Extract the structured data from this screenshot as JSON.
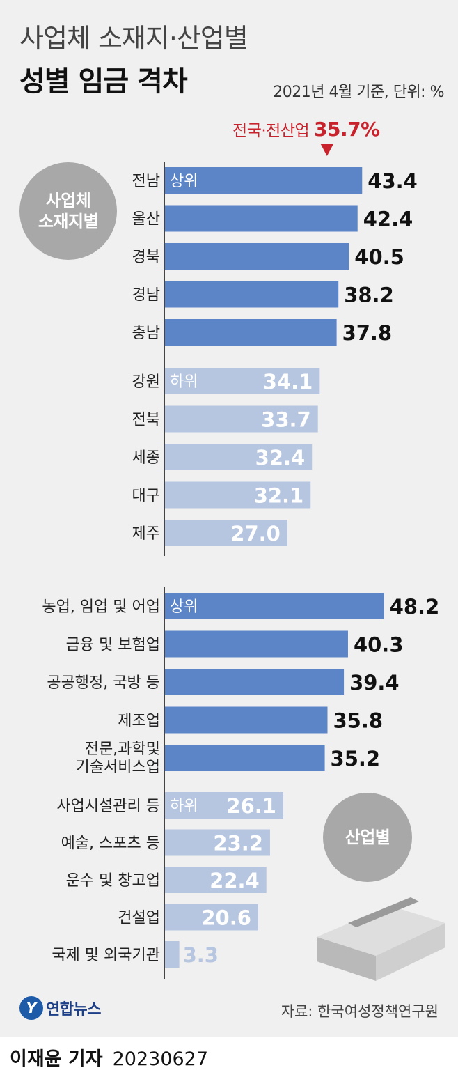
{
  "logo_text": "연합뉴스",
  "source": "자료: 한국여성정책연구원",
  "byline": {
    "reporter": "이재윤 기자",
    "date": "20230627"
  },
  "chart_data": {
    "type": "bar",
    "orientation": "horizontal",
    "title_line1": "사업체 소재지·산업별",
    "title_line2": "성별 임금 격차",
    "subtitle": "2021년 4월 기준, 단위: %",
    "unit": "%",
    "reference": {
      "label": "전국·전산업",
      "value": 35.7,
      "display": "35.7%"
    },
    "colors": {
      "top": "#5b85c6",
      "bottom": "#b7c6e0",
      "reference": "#c8232c",
      "badge": "#a8a8a8"
    },
    "groups": [
      {
        "name": "사업체 소재지별",
        "badge": "사업체\n소재지별",
        "subgroups": [
          {
            "tag": "상위",
            "level": "top",
            "categories": [
              "전남",
              "울산",
              "경북",
              "경남",
              "충남"
            ],
            "values": [
              43.4,
              42.4,
              40.5,
              38.2,
              37.8
            ]
          },
          {
            "tag": "하위",
            "level": "bottom",
            "categories": [
              "강원",
              "전북",
              "세종",
              "대구",
              "제주"
            ],
            "values": [
              34.1,
              33.7,
              32.4,
              32.1,
              27.0
            ]
          }
        ]
      },
      {
        "name": "산업별",
        "badge": "산업별",
        "subgroups": [
          {
            "tag": "상위",
            "level": "top",
            "categories": [
              "농업, 임업 및 어업",
              "금융 및 보험업",
              "공공행정, 국방 등",
              "제조업",
              "전문,과학및\n기술서비스업"
            ],
            "values": [
              48.2,
              40.3,
              39.4,
              35.8,
              35.2
            ]
          },
          {
            "tag": "하위",
            "level": "bottom",
            "categories": [
              "사업시설관리 등",
              "예술, 스포츠 등",
              "운수 및 창고업",
              "건설업",
              "국제 및 외국기관"
            ],
            "values": [
              26.1,
              23.2,
              22.4,
              20.6,
              3.3
            ]
          }
        ]
      }
    ]
  }
}
